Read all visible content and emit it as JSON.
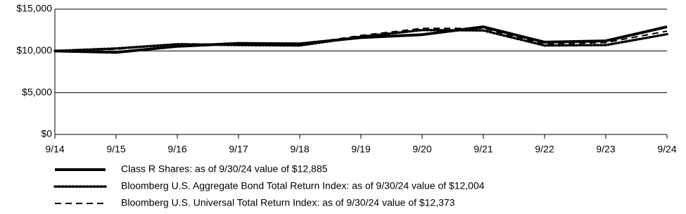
{
  "chart_data": {
    "type": "line",
    "categories": [
      "9/14",
      "9/15",
      "9/16",
      "9/17",
      "9/18",
      "9/19",
      "9/20",
      "9/21",
      "9/22",
      "9/23",
      "9/24"
    ],
    "series": [
      {
        "name": "Class R Shares: as of 9/30/24 value of $12,885",
        "color": "#000000",
        "dash": "solid",
        "values": [
          10000,
          9830,
          10550,
          10900,
          10850,
          11600,
          11950,
          12880,
          11050,
          11200,
          12885
        ]
      },
      {
        "name": "Bloomberg U.S. Aggregate Bond Total Return Index: as of 9/30/24 value of $12,004",
        "color": "#000000",
        "dash": "dotted",
        "values": [
          10000,
          10294,
          10800,
          10700,
          10650,
          11700,
          12500,
          12450,
          10650,
          10700,
          12004
        ]
      },
      {
        "name": "Bloomberg U.S. Universal Total Return Index: as of 9/30/24 value of $12,373",
        "color": "#000000",
        "dash": "dashed",
        "values": [
          10000,
          10200,
          10850,
          10800,
          10750,
          11850,
          12700,
          12700,
          10800,
          11000,
          12373
        ]
      }
    ],
    "ylim": [
      0,
      15000
    ],
    "yticks": [
      {
        "value": 0,
        "label": "$0"
      },
      {
        "value": 5000,
        "label": "$5,000"
      },
      {
        "value": 10000,
        "label": "$10,000"
      },
      {
        "value": 15000,
        "label": "$15,000"
      }
    ],
    "grid": true,
    "legend": "bottom"
  }
}
